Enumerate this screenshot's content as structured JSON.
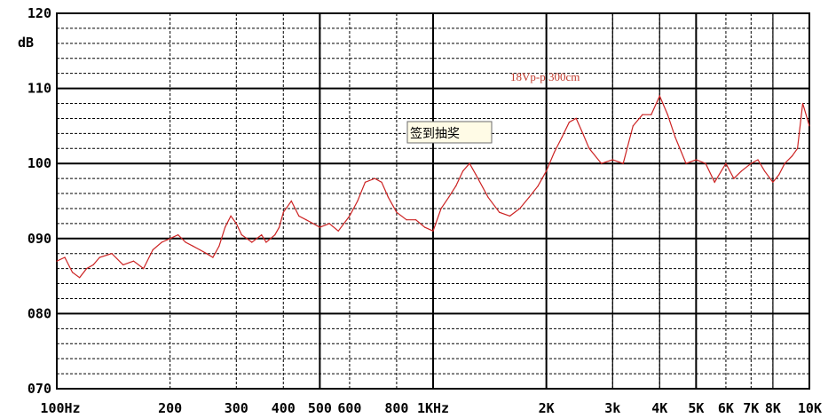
{
  "chart_data": {
    "type": "line",
    "x_scale": "log",
    "xlim": [
      100,
      10000
    ],
    "ylim": [
      70,
      120
    ],
    "unit_label": "dB",
    "y_ticks": [
      {
        "value": 120,
        "label": "120"
      },
      {
        "value": 110,
        "label": "110"
      },
      {
        "value": 100,
        "label": "100"
      },
      {
        "value": 90,
        "label": "090"
      },
      {
        "value": 80,
        "label": "080"
      },
      {
        "value": 70,
        "label": "070"
      }
    ],
    "x_ticks": [
      {
        "value": 100,
        "label": "100Hz"
      },
      {
        "value": 200,
        "label": "200"
      },
      {
        "value": 300,
        "label": "300"
      },
      {
        "value": 400,
        "label": "400"
      },
      {
        "value": 500,
        "label": "500"
      },
      {
        "value": 600,
        "label": "600"
      },
      {
        "value": 800,
        "label": "800"
      },
      {
        "value": 1000,
        "label": "1KHz"
      },
      {
        "value": 2000,
        "label": "2K"
      },
      {
        "value": 3000,
        "label": "3k"
      },
      {
        "value": 4000,
        "label": "4K"
      },
      {
        "value": 5000,
        "label": "5K"
      },
      {
        "value": 6000,
        "label": "6K"
      },
      {
        "value": 7000,
        "label": "7K"
      },
      {
        "value": 8000,
        "label": "8K"
      },
      {
        "value": 10000,
        "label": "10K"
      }
    ],
    "grid": true,
    "annotation": "18Vp-p 300cm",
    "series": [
      {
        "color": "#cc2222",
        "x": [
          100,
          105,
          110,
          115,
          120,
          125,
          130,
          140,
          150,
          160,
          170,
          180,
          190,
          200,
          210,
          220,
          230,
          240,
          250,
          260,
          270,
          280,
          290,
          300,
          310,
          320,
          330,
          340,
          350,
          360,
          370,
          380,
          390,
          400,
          420,
          440,
          460,
          480,
          500,
          530,
          560,
          600,
          630,
          660,
          700,
          730,
          760,
          800,
          850,
          900,
          950,
          1000,
          1050,
          1100,
          1150,
          1200,
          1250,
          1300,
          1400,
          1500,
          1600,
          1700,
          1800,
          1900,
          2000,
          2100,
          2200,
          2300,
          2400,
          2500,
          2600,
          2800,
          3000,
          3200,
          3400,
          3600,
          3800,
          4000,
          4200,
          4400,
          4700,
          5000,
          5300,
          5600,
          6000,
          6300,
          6600,
          7000,
          7300,
          7600,
          8000,
          8300,
          8600,
          9000,
          9300,
          9600,
          10000
        ],
        "y": [
          87,
          87.5,
          85.5,
          84.8,
          86,
          86.5,
          87.5,
          88,
          86.5,
          87,
          86,
          88.5,
          89.5,
          90,
          90.5,
          89.5,
          89,
          88.5,
          88,
          87.5,
          89,
          91.5,
          93,
          92,
          90.5,
          90,
          89.5,
          90,
          90.5,
          89.5,
          90,
          90.5,
          91.5,
          93.5,
          95,
          93,
          92.5,
          92,
          91.5,
          92,
          91,
          93,
          95,
          97.5,
          98,
          97.5,
          95.5,
          93.5,
          92.5,
          92.5,
          91.5,
          91,
          94,
          95.5,
          97,
          99,
          100,
          98.5,
          95.5,
          93.5,
          93,
          94,
          95.5,
          97,
          99,
          101.5,
          103.5,
          105.5,
          106,
          104,
          102,
          100,
          100.5,
          100,
          105,
          106.5,
          106.5,
          109,
          106.5,
          103.5,
          100,
          100.5,
          100,
          97.5,
          100,
          98,
          99,
          100,
          100.5,
          99,
          97.5,
          98.5,
          100,
          101,
          102,
          108,
          105
        ]
      }
    ]
  },
  "overlay_button": {
    "label": "签到抽奖"
  }
}
